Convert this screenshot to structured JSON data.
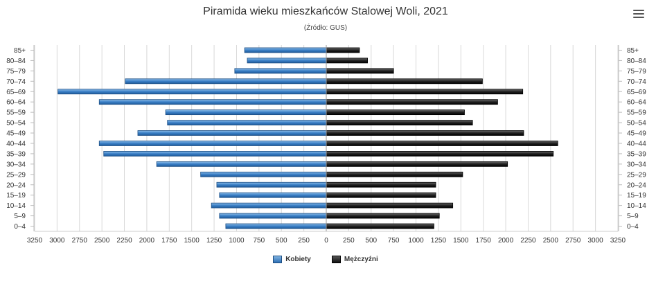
{
  "title": "Piramida wieku mieszkańców Stalowej Woli, 2021",
  "subtitle": "(Źródło: GUS)",
  "menu_icon": "hamburger-menu-icon",
  "colors": {
    "female": "#2f74c0",
    "male": "#1a1a1a",
    "grid": "#d8d8d8"
  },
  "chart_data": {
    "type": "bar",
    "orientation": "horizontal-population-pyramid",
    "categories": [
      "0–4",
      "5–9",
      "10–14",
      "15–19",
      "20–24",
      "25–29",
      "30–34",
      "35–39",
      "40–44",
      "45–49",
      "50–54",
      "55–59",
      "60–64",
      "65–69",
      "70–74",
      "75–79",
      "80–84",
      "85+"
    ],
    "series": [
      {
        "name": "Kobiety",
        "side": "left",
        "values": [
          1120,
          1190,
          1280,
          1190,
          1220,
          1400,
          1890,
          2480,
          2530,
          2100,
          1770,
          1790,
          2530,
          2990,
          2240,
          1020,
          880,
          910
        ]
      },
      {
        "name": "Mężczyźni",
        "side": "right",
        "values": [
          1200,
          1260,
          1410,
          1220,
          1220,
          1520,
          2020,
          2530,
          2580,
          2200,
          1630,
          1540,
          1910,
          2190,
          1740,
          750,
          460,
          370
        ]
      }
    ],
    "x_ticks": [
      "3250",
      "3000",
      "2750",
      "2500",
      "2250",
      "2000",
      "1750",
      "1500",
      "1250",
      "1000",
      "750",
      "500",
      "250",
      "0",
      "250",
      "500",
      "750",
      "1000",
      "1250",
      "1500",
      "1750",
      "2000",
      "2250",
      "2500",
      "2750",
      "3000",
      "3250"
    ],
    "xlim": [
      -3250,
      3250
    ],
    "grid": true,
    "legend_position": "bottom-center",
    "legend": [
      "Kobiety",
      "Mężczyźni"
    ]
  }
}
